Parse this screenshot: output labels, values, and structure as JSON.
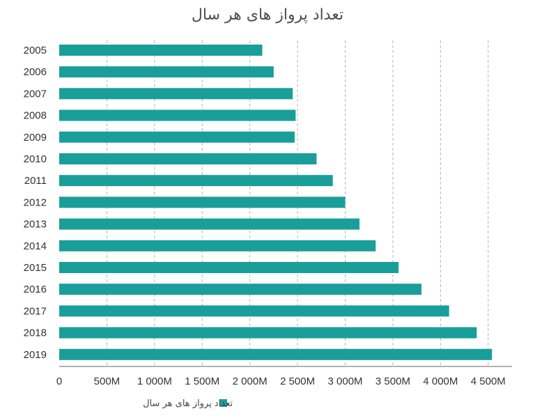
{
  "colors": {
    "bar": "#1a9e9a",
    "grid": "#b5b5b5",
    "axis": "#9a9a9a",
    "text": "#333333"
  },
  "chart_data": {
    "type": "bar",
    "orientation": "horizontal",
    "title": "تعداد پرواز های هر سال",
    "xlabel": "",
    "ylabel": "",
    "categories": [
      "2005",
      "2006",
      "2007",
      "2008",
      "2009",
      "2010",
      "2011",
      "2012",
      "2013",
      "2014",
      "2015",
      "2016",
      "2017",
      "2018",
      "2019"
    ],
    "series": [
      {
        "name": "تعداد پرواز های هر سال",
        "values": [
          2130,
          2250,
          2450,
          2480,
          2470,
          2700,
          2870,
          3000,
          3150,
          3320,
          3560,
          3800,
          4090,
          4380,
          4540
        ]
      }
    ],
    "xlim": [
      0,
      4750
    ],
    "xticks": [
      0,
      500,
      1000,
      1500,
      2000,
      2500,
      3000,
      3500,
      4000,
      4500
    ],
    "xtick_labels": [
      "0",
      "500M",
      "1 000M",
      "1 500M",
      "2 000M",
      "2 500M",
      "3 000M",
      "3 500M",
      "4 000M",
      "4 500M"
    ],
    "grid": "vertical dashed",
    "legend": "bottom-center"
  }
}
